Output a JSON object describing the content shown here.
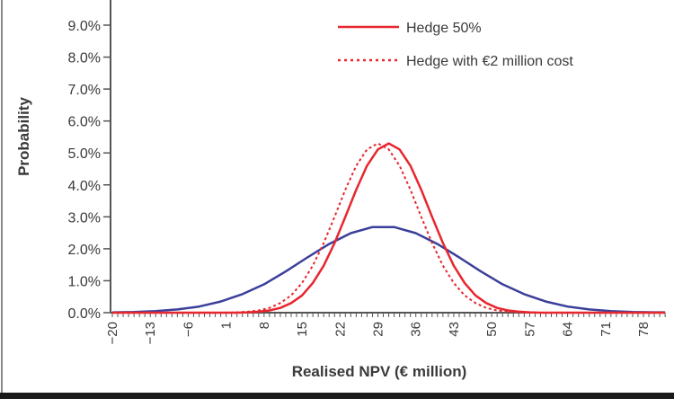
{
  "chart_data": {
    "type": "line",
    "title": "",
    "xlabel": "Realised NPV (€ million)",
    "ylabel": "Probability",
    "xlim": [
      -20,
      82
    ],
    "ylim": [
      0,
      9
    ],
    "x_ticks": [
      -20,
      -13,
      -6,
      1,
      8,
      15,
      22,
      29,
      36,
      43,
      50,
      57,
      64,
      71,
      78
    ],
    "x_tick_labels": [
      "−20",
      "−13",
      "−6",
      "1",
      "8",
      "15",
      "22",
      "29",
      "36",
      "43",
      "50",
      "57",
      "64",
      "71",
      "78"
    ],
    "y_ticks": [
      0,
      1,
      2,
      3,
      4,
      5,
      6,
      7,
      8,
      9
    ],
    "y_tick_labels": [
      "0.0%",
      "1.0%",
      "2.0%",
      "3.0%",
      "4.0%",
      "5.0%",
      "6.0%",
      "7.0%",
      "8.0%",
      "9.0%"
    ],
    "grid": false,
    "legend_position": "top-right",
    "series": [
      {
        "name": "",
        "color": "#3b3f9a",
        "style": "solid",
        "in_legend": false,
        "x": [
          -20,
          -16,
          -12,
          -8,
          -4,
          0,
          4,
          8,
          12,
          16,
          20,
          24,
          28,
          32,
          36,
          40,
          44,
          48,
          52,
          56,
          60,
          64,
          68,
          72,
          76,
          80,
          82
        ],
        "y": [
          0.01,
          0.02,
          0.05,
          0.1,
          0.19,
          0.35,
          0.58,
          0.89,
          1.29,
          1.73,
          2.15,
          2.49,
          2.68,
          2.68,
          2.49,
          2.15,
          1.73,
          1.29,
          0.89,
          0.58,
          0.35,
          0.19,
          0.1,
          0.05,
          0.02,
          0.01,
          0.01
        ]
      },
      {
        "name": "Hedge 50%",
        "color": "#e8262e",
        "style": "solid",
        "in_legend": true,
        "x": [
          -20,
          1,
          3,
          5,
          7,
          9,
          11,
          13,
          15,
          17,
          19,
          21,
          23,
          25,
          27,
          29,
          31,
          33,
          35,
          37,
          39,
          41,
          43,
          45,
          47,
          49,
          51,
          53,
          55,
          57,
          59,
          61,
          82
        ],
        "y": [
          0,
          0,
          0,
          0.01,
          0.03,
          0.07,
          0.15,
          0.3,
          0.54,
          0.93,
          1.47,
          2.18,
          3.0,
          3.85,
          4.6,
          5.11,
          5.3,
          5.11,
          4.6,
          3.85,
          3.0,
          2.18,
          1.47,
          0.93,
          0.54,
          0.3,
          0.15,
          0.07,
          0.03,
          0.01,
          0,
          0,
          0
        ]
      },
      {
        "name": "Hedge with €2 million cost",
        "color": "#e8262e",
        "style": "dotted",
        "in_legend": true,
        "x": [
          -20,
          -1,
          1,
          3,
          5,
          7,
          9,
          11,
          13,
          15,
          17,
          19,
          21,
          23,
          25,
          27,
          29,
          31,
          33,
          35,
          37,
          39,
          41,
          43,
          45,
          47,
          49,
          51,
          53,
          55,
          57,
          59,
          82
        ],
        "y": [
          0,
          0,
          0,
          0.01,
          0.03,
          0.07,
          0.15,
          0.3,
          0.54,
          0.93,
          1.47,
          2.18,
          3.0,
          3.85,
          4.6,
          5.11,
          5.3,
          5.11,
          4.6,
          3.85,
          3.0,
          2.18,
          1.47,
          0.93,
          0.54,
          0.3,
          0.15,
          0.07,
          0.03,
          0.01,
          0,
          0,
          0
        ]
      }
    ]
  }
}
